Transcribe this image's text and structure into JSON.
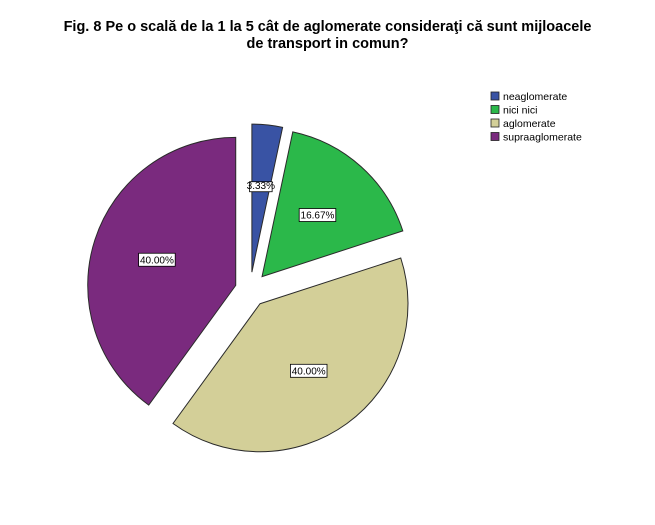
{
  "chart_data": {
    "type": "pie",
    "title_line1": "Fig. 8  Pe o scală de la 1 la 5 cât de aglomerate consideraţi că sunt mijloacele",
    "title_line2": "de transport in comun?",
    "categories": [
      "neaglomerate",
      "nici nici",
      "aglomerate",
      "supraaglomerate"
    ],
    "values": [
      3.33,
      16.67,
      40.0,
      40.0
    ],
    "value_labels": [
      "3.33%",
      "16.67%",
      "40.00%",
      "40.00%"
    ],
    "colors": [
      "#3953a4",
      "#2bb84a",
      "#d3cf98",
      "#7a2a7e"
    ],
    "exploded": true,
    "legend_position": "top-right"
  }
}
